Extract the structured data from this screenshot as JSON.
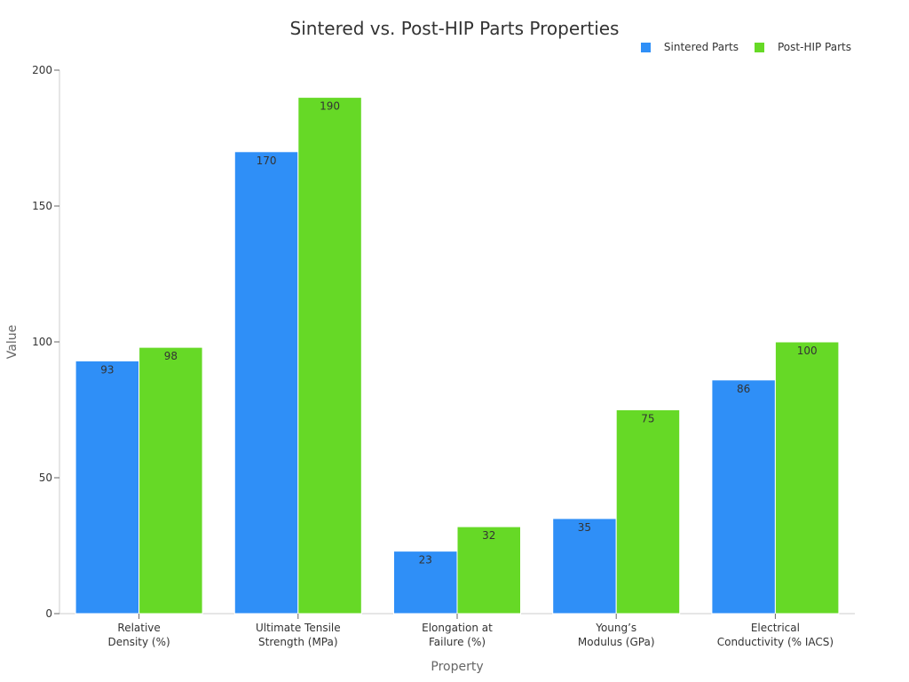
{
  "chart_data": {
    "type": "bar",
    "title": "Sintered vs. Post-HIP Parts Properties",
    "xlabel": "Property",
    "ylabel": "Value",
    "ylim": [
      0,
      200
    ],
    "yticks": [
      0,
      50,
      100,
      150,
      200
    ],
    "grid": false,
    "legend_position": "top-right",
    "categories": [
      [
        "Relative",
        "Density (%)"
      ],
      [
        "Ultimate Tensile",
        "Strength (MPa)"
      ],
      [
        "Elongation at",
        "Failure (%)"
      ],
      [
        "Young’s",
        "Modulus (GPa)"
      ],
      [
        "Electrical",
        "Conductivity (% IACS)"
      ]
    ],
    "series": [
      {
        "name": "Sintered Parts",
        "color": "#2F8FF7",
        "values": [
          93,
          170,
          23,
          35,
          86
        ]
      },
      {
        "name": "Post-HIP Parts",
        "color": "#66D926",
        "values": [
          98,
          190,
          32,
          75,
          100
        ]
      }
    ]
  }
}
